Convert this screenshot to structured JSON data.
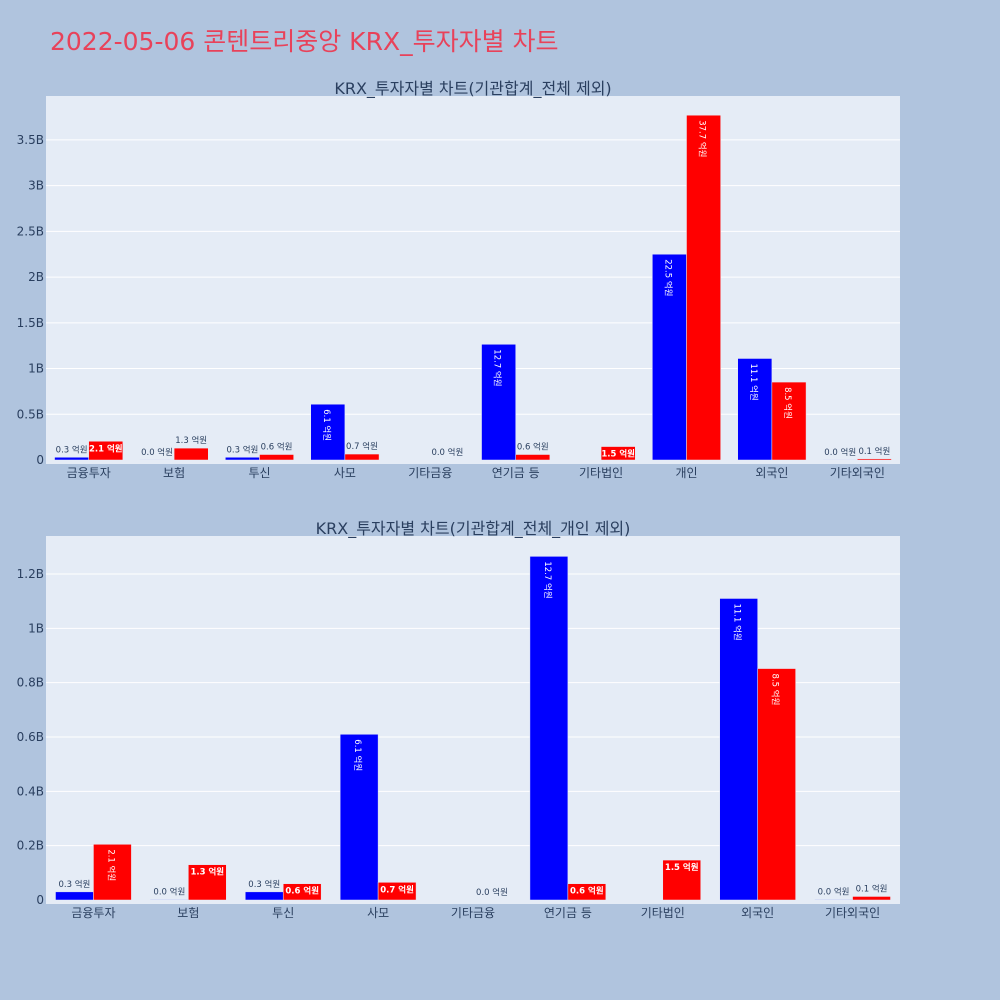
{
  "page": {
    "title": "2022-05-06 콘텐트리중앙 KRX_투자자별 차트"
  },
  "colors": {
    "buy": "#0000FF",
    "sell": "#FF0000",
    "plot_bg": "#E5ECF6",
    "page_bg": "#B0C4DE",
    "title": "#E8425A"
  },
  "chart_data": [
    {
      "type": "bar",
      "title": "KRX_투자자별 차트(기관합계_전체 제외)",
      "categories": [
        "금융투자",
        "보험",
        "투신",
        "사모",
        "기타금융",
        "연기금 등",
        "기타법인",
        "개인",
        "외국인",
        "기타외국인"
      ],
      "series": [
        {
          "values": [
            30000000,
            2000000,
            30000000,
            610000000,
            0,
            1265000000,
            0,
            2250000000,
            1110000000,
            2000000
          ],
          "labels": [
            "0.3 억원",
            "0.0 억원",
            "0.3 억원",
            "6.1 억원",
            "",
            "12.7 억원",
            "",
            "22.5 억원",
            "11.1 억원",
            "0.0 억원"
          ]
        },
        {
          "values": [
            205000000,
            130000000,
            60000000,
            65000000,
            0,
            60000000,
            147000000,
            3770000000,
            852000000,
            13000000
          ],
          "labels": [
            "2.1 억원",
            "1.3 억원",
            "0.6 억원",
            "0.7 억원",
            "0.0 억원",
            "0.6 억원",
            "1.5 억원",
            "37.7 억원",
            "8.5 억원",
            "0.1 억원"
          ]
        }
      ],
      "ylim": [
        0,
        3980000000
      ],
      "yticks": [
        0,
        500000000,
        1000000000,
        1500000000,
        2000000000,
        2500000000,
        3000000000,
        3500000000
      ],
      "ytick_labels": [
        "0",
        "0.5B",
        "1B",
        "1.5B",
        "2B",
        "2.5B",
        "3B",
        "3.5B"
      ],
      "grid": true
    },
    {
      "type": "bar",
      "title": "KRX_투자자별 차트(기관합계_전체_개인 제외)",
      "categories": [
        "금융투자",
        "보험",
        "투신",
        "사모",
        "기타금융",
        "연기금 등",
        "기타법인",
        "외국인",
        "기타외국인"
      ],
      "series": [
        {
          "values": [
            30000000,
            2000000,
            30000000,
            610000000,
            0,
            1265000000,
            0,
            1110000000,
            2000000
          ],
          "labels": [
            "0.3 억원",
            "0.0 억원",
            "0.3 억원",
            "6.1 억원",
            "",
            "12.7 억원",
            "",
            "11.1 억원",
            "0.0 억원"
          ]
        },
        {
          "values": [
            205000000,
            130000000,
            60000000,
            65000000,
            0,
            60000000,
            147000000,
            852000000,
            13000000
          ],
          "labels": [
            "2.1 억원",
            "1.3 억원",
            "0.6 억원",
            "0.7 억원",
            "0.0 억원",
            "0.6 억원",
            "1.5 억원",
            "8.5 억원",
            "0.1 억원"
          ]
        }
      ],
      "ylim": [
        0,
        1340000000
      ],
      "yticks": [
        0,
        200000000,
        400000000,
        600000000,
        800000000,
        1000000000,
        1200000000
      ],
      "ytick_labels": [
        "0",
        "0.2B",
        "0.4B",
        "0.6B",
        "0.8B",
        "1B",
        "1.2B"
      ],
      "grid": true
    }
  ]
}
